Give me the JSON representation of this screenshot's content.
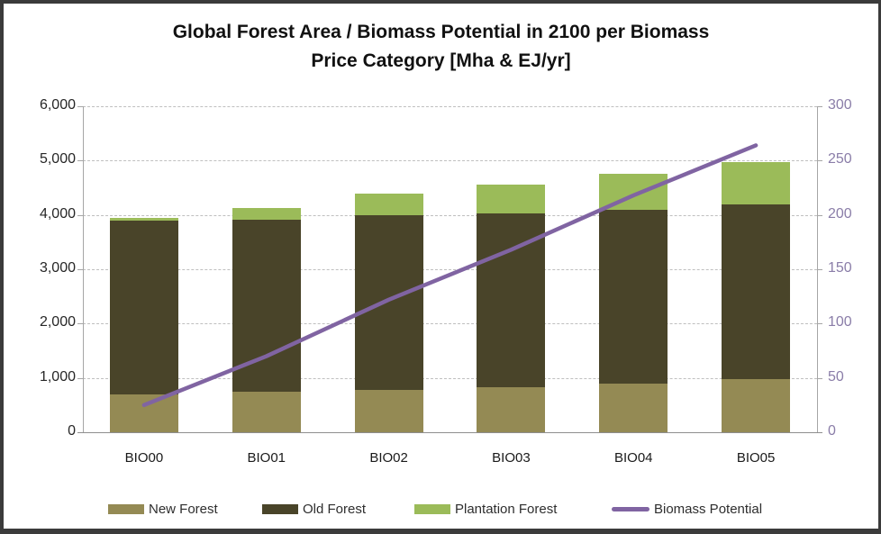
{
  "title": {
    "line1": "Global Forest Area / Biomass Potential in 2100 per Biomass",
    "line2": "Price Category [Mha & EJ/yr]"
  },
  "chart_data": {
    "type": "bar",
    "subtype": "stacked-bars-with-line-overlay",
    "title": "Global Forest Area / Biomass Potential in 2100 per Biomass Price Category [Mha & EJ/yr]",
    "categories": [
      "BIO00",
      "BIO01",
      "BIO02",
      "BIO03",
      "BIO04",
      "BIO05"
    ],
    "series": [
      {
        "name": "New Forest",
        "type": "bar",
        "axis": "left",
        "color": "#948A54",
        "values": [
          700,
          740,
          780,
          830,
          900,
          980
        ]
      },
      {
        "name": "Old Forest",
        "type": "bar",
        "axis": "left",
        "color": "#494429",
        "values": [
          3200,
          3170,
          3220,
          3200,
          3200,
          3220
        ]
      },
      {
        "name": "Plantation Forest",
        "type": "bar",
        "axis": "left",
        "color": "#9BBB59",
        "values": [
          50,
          220,
          400,
          520,
          650,
          770
        ]
      },
      {
        "name": "Biomass Potential",
        "type": "line",
        "axis": "right",
        "color": "#8064A2",
        "values": [
          25,
          70,
          122,
          168,
          218,
          264
        ]
      }
    ],
    "left_axis": {
      "min": 0,
      "max": 6000,
      "step": 1000,
      "tick_labels": [
        "0",
        "1,000",
        "2,000",
        "3,000",
        "4,000",
        "5,000",
        "6,000"
      ],
      "label_color": "#262626"
    },
    "right_axis": {
      "min": 0,
      "max": 300,
      "step": 50,
      "tick_labels": [
        "0",
        "50",
        "100",
        "150",
        "200",
        "250",
        "300"
      ],
      "label_color": "#8a7da8"
    },
    "grid": "horizontal-dashed",
    "legend_position": "bottom",
    "legend_items": [
      "New Forest",
      "Old Forest",
      "Plantation Forest",
      "Biomass Potential"
    ]
  }
}
